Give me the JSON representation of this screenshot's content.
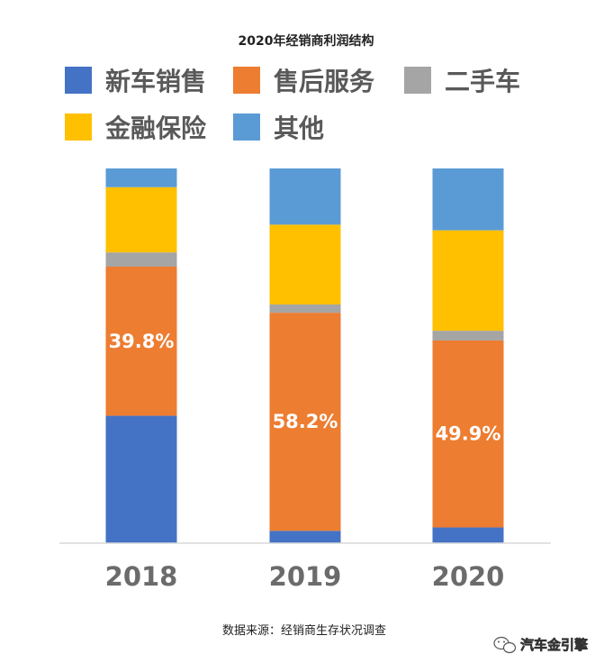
{
  "chart_data": {
    "type": "bar",
    "stacked": true,
    "title": "2020年经销商利润结构",
    "categories": [
      "2018",
      "2019",
      "2020"
    ],
    "series": [
      {
        "name": "新车销售",
        "color": "#4472c4",
        "values": [
          34.0,
          3.3,
          4.2
        ]
      },
      {
        "name": "售后服务",
        "color": "#ed7d31",
        "values": [
          39.8,
          58.2,
          49.9
        ]
      },
      {
        "name": "二手车",
        "color": "#a5a5a5",
        "values": [
          3.8,
          2.2,
          2.6
        ]
      },
      {
        "name": "金融保险",
        "color": "#ffc000",
        "values": [
          17.4,
          21.3,
          26.8
        ]
      },
      {
        "name": "其他",
        "color": "#5b9bd5",
        "values": [
          5.0,
          15.0,
          16.5
        ]
      }
    ],
    "data_labels": [
      {
        "series": "售后服务",
        "values": [
          "39.8%",
          "58.2%",
          "49.9%"
        ]
      }
    ],
    "ylim": [
      0,
      100
    ],
    "xlabel": "",
    "ylabel": "",
    "legend_position": "top",
    "grid": false
  },
  "source_note": "数据来源：经销商生存状况调查",
  "watermark": {
    "icon": "wechat-icon",
    "text": "汽车金引擎"
  }
}
